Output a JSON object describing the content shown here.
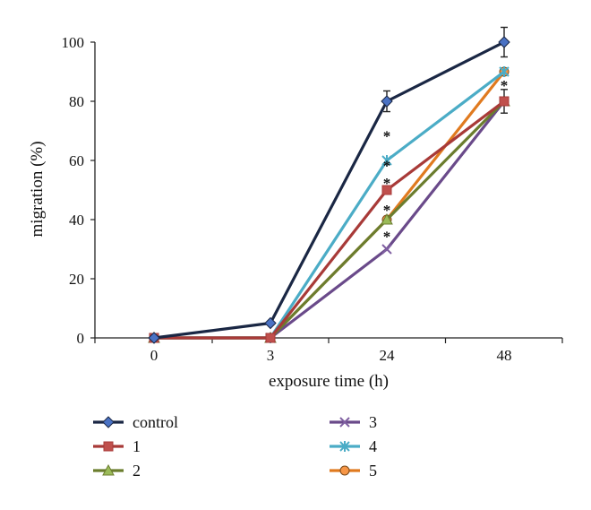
{
  "chart_data": {
    "type": "line",
    "title": "",
    "xlabel": "exposure time (h)",
    "ylabel": "migration (%)",
    "x": [
      "0",
      "3",
      "24",
      "48"
    ],
    "ylim": [
      0,
      100
    ],
    "yticks": [
      "0",
      "20",
      "40",
      "60",
      "80",
      "100"
    ],
    "grid": false,
    "legend_position": "bottom",
    "series": [
      {
        "name": "control",
        "values": [
          0,
          5,
          80,
          100
        ],
        "color": "#1a2744",
        "marker": "diamond",
        "marker_color": "#4a72c4",
        "error": [
          0,
          0,
          3.5,
          5
        ]
      },
      {
        "name": "1",
        "values": [
          0,
          0,
          50,
          80
        ],
        "color": "#a83a38",
        "marker": "square",
        "marker_color": "#c0504d",
        "error": [
          0,
          0,
          0,
          4
        ]
      },
      {
        "name": "2",
        "values": [
          0,
          0,
          40,
          80
        ],
        "color": "#6b7d2e",
        "marker": "triangle",
        "marker_color": "#9bbb59",
        "error": [
          0,
          0,
          0,
          0
        ]
      },
      {
        "name": "3",
        "values": [
          0,
          0,
          30,
          80
        ],
        "color": "#6a4a8a",
        "marker": "x",
        "marker_color": "#7f5fa1",
        "error": [
          0,
          0,
          0,
          0
        ]
      },
      {
        "name": "4",
        "values": [
          0,
          0,
          60,
          90
        ],
        "color": "#4bacc6",
        "marker": "star",
        "marker_color": "#4bacc6",
        "error": [
          0,
          0,
          0,
          0
        ]
      },
      {
        "name": "5",
        "values": [
          0,
          0,
          40,
          90
        ],
        "color": "#e07a1f",
        "marker": "circle",
        "marker_color": "#f79646",
        "error": [
          0,
          0,
          0,
          0
        ]
      }
    ],
    "annotations": [
      {
        "text": "*",
        "x": "24",
        "y": 69
      },
      {
        "text": "*",
        "x": "24",
        "y": 59
      },
      {
        "text": "*",
        "x": "24",
        "y": 53
      },
      {
        "text": "*",
        "x": "24",
        "y": 44
      },
      {
        "text": "*",
        "x": "24",
        "y": 35
      },
      {
        "text": "*",
        "x": "48",
        "y": 86
      }
    ]
  }
}
